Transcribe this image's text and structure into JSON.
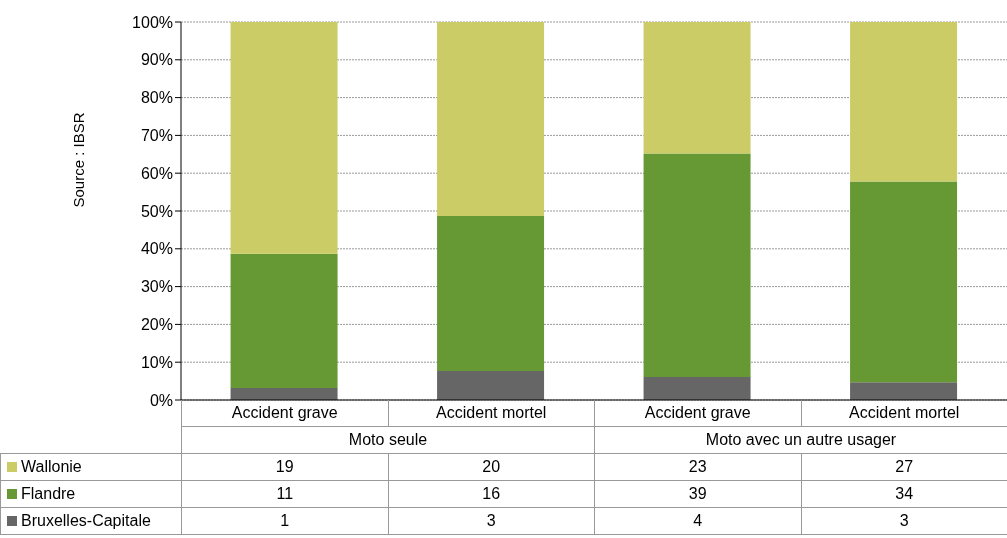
{
  "chart_data": [
    {
      "type": "bar",
      "stacked": true,
      "categories": [
        null,
        null,
        null,
        null
      ],
      "series": [
        {
          "color": "#666666",
          "values": [
            3.2,
            7.7,
            6.1,
            4.7
          ]
        },
        {
          "color": "#669933",
          "values": [
            35.5,
            41.0,
            59.1,
            53.1
          ]
        },
        {
          "color": "#cccc66",
          "values": [
            61.3,
            51.3,
            34.8,
            42.2
          ]
        }
      ],
      "ylim": [
        0,
        100
      ],
      "yticks": [
        {
          "value": 0,
          "label": "0%"
        },
        {
          "value": 10,
          "label": "10%"
        },
        {
          "value": 20,
          "label": "20%"
        },
        {
          "value": 30,
          "label": "30%"
        },
        {
          "value": 40,
          "label": "40%"
        },
        {
          "value": 50,
          "label": "50%"
        },
        {
          "value": 60,
          "label": "60%"
        },
        {
          "value": 70,
          "label": "70%"
        },
        {
          "value": 80,
          "label": "80%"
        },
        {
          "value": 90,
          "label": "90%"
        },
        {
          "value": 100,
          "label": "100%"
        }
      ],
      "grid": "y",
      "annotations": [
        "Source : IBSR"
      ]
    },
    {
      "type": "other",
      "categories": [
        "Accident grave",
        "Accident mortel",
        "Accident grave",
        "Accident mortel"
      ],
      "series": [
        {
          "name": "Wallonie",
          "color": "#cccc66",
          "values": [
            19,
            20,
            23,
            27
          ]
        },
        {
          "name": "Flandre",
          "color": "#669933",
          "values": [
            11,
            16,
            39,
            34
          ]
        },
        {
          "name": "Bruxelles-Capitale",
          "color": "#666666",
          "values": [
            1,
            3,
            4,
            3
          ]
        }
      ],
      "data_labels": true,
      "annotations": [
        "Moto seule",
        "Moto avec un autre usager"
      ]
    }
  ]
}
